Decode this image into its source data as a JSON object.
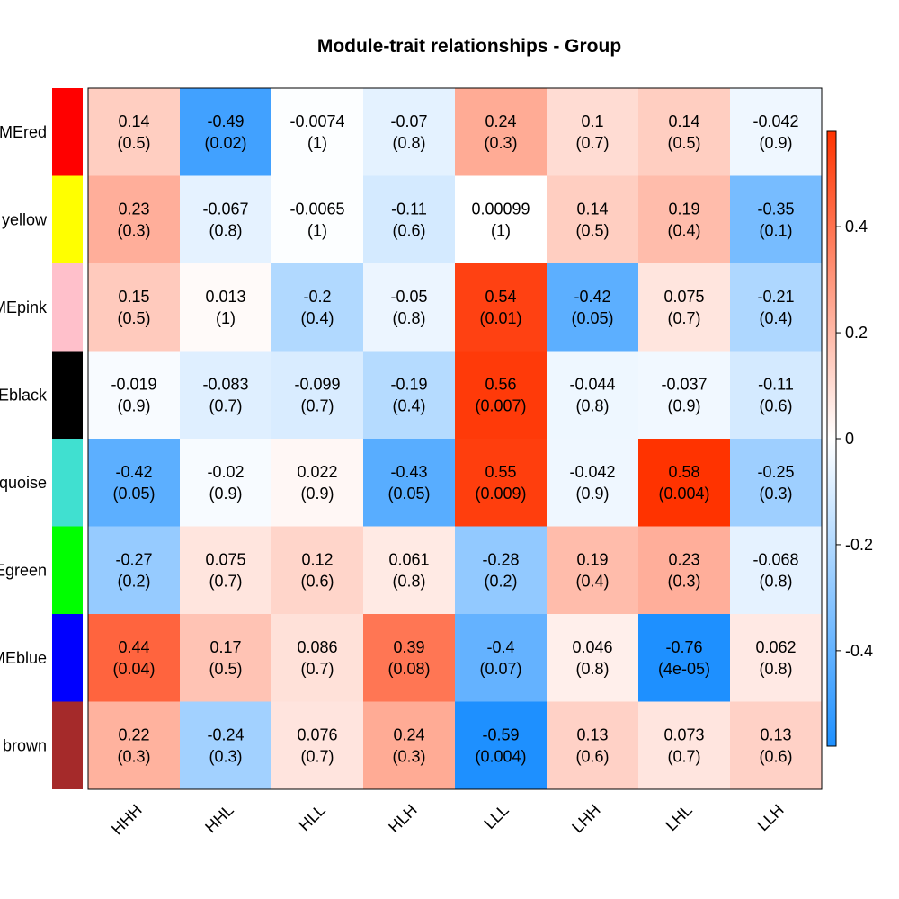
{
  "chart_data": {
    "type": "heatmap",
    "title": "Module-trait relationships - Group",
    "columns": [
      "HHH",
      "HHL",
      "HLL",
      "HLH",
      "LLL",
      "LHH",
      "LHL",
      "LLH"
    ],
    "rows": [
      {
        "label": "MEred",
        "color": "#FF0000",
        "values": [
          0.14,
          -0.49,
          -0.0074,
          -0.07,
          0.24,
          0.1,
          0.14,
          -0.042
        ],
        "values_text": [
          "0.14",
          "-0.49",
          "-0.0074",
          "-0.07",
          "0.24",
          "0.1",
          "0.14",
          "-0.042"
        ],
        "pvalues": [
          "(0.5)",
          "(0.02)",
          "(1)",
          "(0.8)",
          "(0.3)",
          "(0.7)",
          "(0.5)",
          "(0.9)"
        ]
      },
      {
        "label": "yellow",
        "color": "#FFFF00",
        "values": [
          0.23,
          -0.067,
          -0.0065,
          -0.11,
          0.00099,
          0.14,
          0.19,
          -0.35
        ],
        "values_text": [
          "0.23",
          "-0.067",
          "-0.0065",
          "-0.11",
          "0.00099",
          "0.14",
          "0.19",
          "-0.35"
        ],
        "pvalues": [
          "(0.3)",
          "(0.8)",
          "(1)",
          "(0.6)",
          "(1)",
          "(0.5)",
          "(0.4)",
          "(0.1)"
        ]
      },
      {
        "label": "MEpink",
        "color": "#FFC0CB",
        "values": [
          0.15,
          0.013,
          -0.2,
          -0.05,
          0.54,
          -0.42,
          0.075,
          -0.21
        ],
        "values_text": [
          "0.15",
          "0.013",
          "-0.2",
          "-0.05",
          "0.54",
          "-0.42",
          "0.075",
          "-0.21"
        ],
        "pvalues": [
          "(0.5)",
          "(1)",
          "(0.4)",
          "(0.8)",
          "(0.01)",
          "(0.05)",
          "(0.7)",
          "(0.4)"
        ]
      },
      {
        "label": "Eblack",
        "color": "#000000",
        "values": [
          -0.019,
          -0.083,
          -0.099,
          -0.19,
          0.56,
          -0.044,
          -0.037,
          -0.11
        ],
        "values_text": [
          "-0.019",
          "-0.083",
          "-0.099",
          "-0.19",
          "0.56",
          "-0.044",
          "-0.037",
          "-0.11"
        ],
        "pvalues": [
          "(0.9)",
          "(0.7)",
          "(0.7)",
          "(0.4)",
          "(0.007)",
          "(0.8)",
          "(0.9)",
          "(0.6)"
        ]
      },
      {
        "label": "quoise",
        "color": "#40E0D0",
        "values": [
          -0.42,
          -0.02,
          0.022,
          -0.43,
          0.55,
          -0.042,
          0.58,
          -0.25
        ],
        "values_text": [
          "-0.42",
          "-0.02",
          "0.022",
          "-0.43",
          "0.55",
          "-0.042",
          "0.58",
          "-0.25"
        ],
        "pvalues": [
          "(0.05)",
          "(0.9)",
          "(0.9)",
          "(0.05)",
          "(0.009)",
          "(0.9)",
          "(0.004)",
          "(0.3)"
        ]
      },
      {
        "label": "Egreen",
        "color": "#00FF00",
        "values": [
          -0.27,
          0.075,
          0.12,
          0.061,
          -0.28,
          0.19,
          0.23,
          -0.068
        ],
        "values_text": [
          "-0.27",
          "0.075",
          "0.12",
          "0.061",
          "-0.28",
          "0.19",
          "0.23",
          "-0.068"
        ],
        "pvalues": [
          "(0.2)",
          "(0.7)",
          "(0.6)",
          "(0.8)",
          "(0.2)",
          "(0.4)",
          "(0.3)",
          "(0.8)"
        ]
      },
      {
        "label": "MEblue",
        "color": "#0000FF",
        "values": [
          0.44,
          0.17,
          0.086,
          0.39,
          -0.4,
          0.046,
          -0.76,
          0.062
        ],
        "values_text": [
          "0.44",
          "0.17",
          "0.086",
          "0.39",
          "-0.4",
          "0.046",
          "-0.76",
          "0.062"
        ],
        "pvalues": [
          "(0.04)",
          "(0.5)",
          "(0.7)",
          "(0.08)",
          "(0.07)",
          "(0.8)",
          "(4e-05)",
          "(0.8)"
        ]
      },
      {
        "label": "brown",
        "color": "#A52A2A",
        "values": [
          0.22,
          -0.24,
          0.076,
          0.24,
          -0.59,
          0.13,
          0.073,
          0.13
        ],
        "values_text": [
          "0.22",
          "-0.24",
          "0.076",
          "0.24",
          "-0.59",
          "0.13",
          "0.073",
          "0.13"
        ],
        "pvalues": [
          "(0.3)",
          "(0.3)",
          "(0.7)",
          "(0.3)",
          "(0.004)",
          "(0.6)",
          "(0.7)",
          "(0.6)"
        ]
      }
    ],
    "colorbar": {
      "range": [
        -0.58,
        0.58
      ],
      "ticks": [
        0.4,
        0.2,
        0,
        -0.2,
        -0.4
      ],
      "tick_labels": [
        "0.4",
        "0.2",
        "0",
        "-0.2",
        "-0.4"
      ],
      "low_color": "#1E90FF",
      "mid_color": "#FFFFFF",
      "high_color": "#FF3300"
    }
  }
}
